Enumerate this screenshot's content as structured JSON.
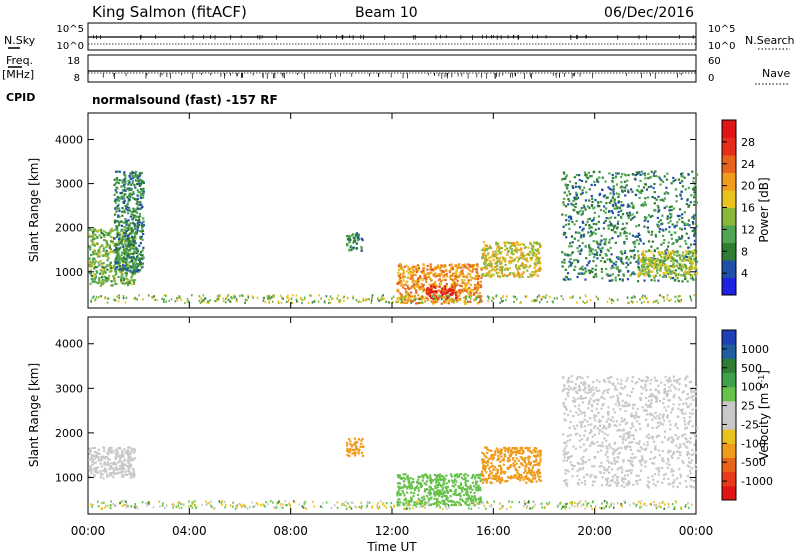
{
  "header": {
    "station": "King Salmon (fitACF)",
    "beam": "Beam 10",
    "date": "06/Dec/2016"
  },
  "strips": {
    "nsky_label": "N.Sky",
    "nsky_ticks": [
      "10^5",
      "10^0"
    ],
    "nsearch_label": "N.Search",
    "nsearch_ticks": [
      "10^5",
      "10^0"
    ],
    "freq_label": "Freq.",
    "freq_unit": "[MHz]",
    "freq_ticks": [
      "18",
      "8"
    ],
    "nave_label": "Nave",
    "nave_ticks": [
      "60",
      "0"
    ],
    "cpid_label": "CPID",
    "cpid_text": "normalsound (fast) -157 RF"
  },
  "chart_data": [
    {
      "type": "heatmap",
      "name": "power",
      "ylabel": "Slant Range [km]",
      "xlabel": "Time UT",
      "xlim": [
        "00:00",
        "24:00"
      ],
      "ylim": [
        180,
        4600
      ],
      "yticks": [
        "1000",
        "2000",
        "3000",
        "4000"
      ],
      "colorbar_label": "Power [dB]",
      "colorbar_ticks": [
        "4",
        "8",
        "12",
        "16",
        "20",
        "24",
        "28"
      ],
      "colorbar_colors": [
        "#1e22e0",
        "#1f4fa8",
        "#2e7d32",
        "#4fa552",
        "#8ab63a",
        "#e8c21d",
        "#ef9b1b",
        "#e8641a",
        "#e52f1a",
        "#e01616"
      ],
      "features": [
        {
          "time_start": "00:00",
          "time_end": "01:50",
          "range_start": 700,
          "range_end": 2000,
          "value_db": 12
        },
        {
          "time_start": "01:00",
          "time_end": "02:10",
          "range_start": 1000,
          "range_end": 3300,
          "value_db": 8
        },
        {
          "time_start": "10:10",
          "time_end": "10:50",
          "range_start": 1500,
          "range_end": 1900,
          "value_db": 8
        },
        {
          "time_start": "12:10",
          "time_end": "15:30",
          "range_start": 300,
          "range_end": 1200,
          "value_db": 20
        },
        {
          "time_start": "13:20",
          "time_end": "14:30",
          "range_start": 400,
          "range_end": 700,
          "value_db": 28
        },
        {
          "time_start": "15:30",
          "time_end": "17:50",
          "range_start": 900,
          "range_end": 1700,
          "value_db": 16
        },
        {
          "time_start": "18:40",
          "time_end": "24:00",
          "range_start": 800,
          "range_end": 3300,
          "value_db": 8
        },
        {
          "time_start": "21:40",
          "time_end": "24:00",
          "range_start": 900,
          "range_end": 1500,
          "value_db": 14
        }
      ]
    },
    {
      "type": "heatmap",
      "name": "velocity",
      "ylabel": "Slant Range [km]",
      "xlabel": "Time UT",
      "xlim": [
        "00:00",
        "24:00"
      ],
      "ylim": [
        180,
        4600
      ],
      "xticks": [
        "00:00",
        "04:00",
        "08:00",
        "12:00",
        "16:00",
        "20:00",
        "00:00"
      ],
      "yticks": [
        "1000",
        "2000",
        "3000",
        "4000"
      ],
      "colorbar_label": "Velocity [m s",
      "colorbar_label_sup": "-1",
      "colorbar_label_end": "]",
      "colorbar_ticks": [
        "1000",
        "500",
        "100",
        "25",
        "-25",
        "-100",
        "-500",
        "-1000"
      ],
      "colorbar_colors": [
        "#1f3fb8",
        "#1f5fa0",
        "#2e7d32",
        "#3fa04a",
        "#66c24a",
        "#c8c8c8",
        "#c8c8c8",
        "#e8c21d",
        "#ef9b1b",
        "#e8641a",
        "#e83a1a",
        "#e01616"
      ],
      "features": [
        {
          "time_start": "00:00",
          "time_end": "01:50",
          "range_start": 1000,
          "range_end": 1700,
          "value_ms": 0
        },
        {
          "time_start": "10:10",
          "time_end": "10:50",
          "range_start": 1500,
          "range_end": 1900,
          "value_ms": -300
        },
        {
          "time_start": "12:10",
          "time_end": "15:30",
          "range_start": 400,
          "range_end": 1100,
          "value_ms": 80
        },
        {
          "time_start": "15:30",
          "time_end": "17:50",
          "range_start": 900,
          "range_end": 1700,
          "value_ms": -150
        },
        {
          "time_start": "18:40",
          "time_end": "24:00",
          "range_start": 800,
          "range_end": 3300,
          "value_ms": 0
        }
      ]
    }
  ]
}
